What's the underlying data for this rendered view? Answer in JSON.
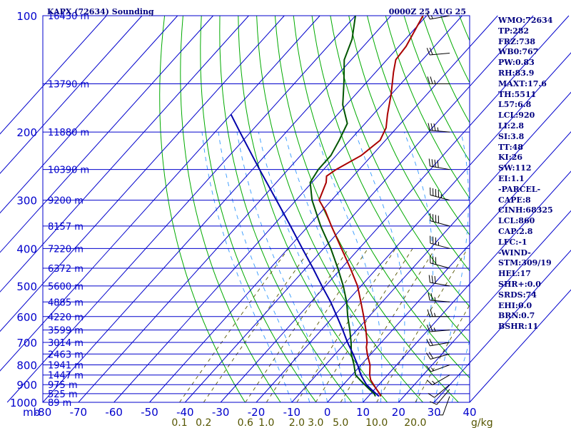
{
  "header": {
    "station_title": "KAPX (72634) Sounding",
    "valid_time": "0000Z 25 AUG 25"
  },
  "colors": {
    "axis_blue": "#0000cc",
    "title_navy": "#00007f",
    "temperature_red": "#aa0000",
    "dewpoint_green": "#005500",
    "parcel_blue": "#0000aa",
    "dry_adiabat_green": "#00aa00",
    "mixing_ratio_olive": "#555500",
    "moist_adiabat_cyan": "#3399ff"
  },
  "stats_panel": [
    "WMO:72634",
    "TP:282",
    "FRZ:738",
    "WB0:767",
    "PW:0.83",
    "RH:83.9",
    "MAXT:17.6",
    "TH:5511",
    "L57:6.8",
    "LCL:920",
    "LI:2.8",
    "SI:3.8",
    "TT:48",
    "KI:26",
    "SW:112",
    "EI:1.1",
    "-PARCEL-",
    "CAPE:8",
    "CINH:68325",
    "LCL:860",
    "CAP:2.8",
    "LFC:-1",
    "-WIND-",
    "STM:309/19",
    "HEL:17",
    "SHR+:0.0",
    "SRDS:74",
    "EHI:0.0",
    "BRN:0.7",
    "BSHR:11"
  ],
  "chart_data": {
    "type": "line",
    "chart_kind": "skew-T log-P sounding",
    "y_scale": "log",
    "ylim_mb": [
      1000,
      100
    ],
    "xlim_c": [
      -80,
      40
    ],
    "y_axis_unit": "mb",
    "x_axis_unit": "C",
    "mixing_ratio_unit": "g/kg",
    "pressure_ticks": [
      "100",
      "200",
      "300",
      "400",
      "500",
      "600",
      "700",
      "800",
      "900",
      "1000"
    ],
    "temperature_ticks": [
      "-80",
      "-70",
      "-60",
      "-50",
      "-40",
      "-30",
      "-20",
      "-10",
      "0",
      "10",
      "20",
      "30",
      "40"
    ],
    "mixing_ratio_labels": [
      "0.1",
      "0.2",
      "0.6",
      "1.0",
      "2.0",
      "3.0",
      "5.0",
      "10.0",
      "20.0"
    ],
    "height_labels": [
      {
        "p": 100,
        "label": "16430 m"
      },
      {
        "p": 150,
        "label": "13790 m"
      },
      {
        "p": 200,
        "label": "11880 m"
      },
      {
        "p": 250,
        "label": "10390 m"
      },
      {
        "p": 300,
        "label": "9200 m"
      },
      {
        "p": 350,
        "label": "8157 m"
      },
      {
        "p": 400,
        "label": "7220 m"
      },
      {
        "p": 450,
        "label": "6372 m"
      },
      {
        "p": 500,
        "label": "5600 m"
      },
      {
        "p": 550,
        "label": "4885 m"
      },
      {
        "p": 600,
        "label": "4220 m"
      },
      {
        "p": 650,
        "label": "3599 m"
      },
      {
        "p": 700,
        "label": "3014 m"
      },
      {
        "p": 750,
        "label": "2463 m"
      },
      {
        "p": 800,
        "label": "1941 m"
      },
      {
        "p": 850,
        "label": "1447 m"
      },
      {
        "p": 900,
        "label": "975 m"
      },
      {
        "p": 950,
        "label": "525 m"
      },
      {
        "p": 1000,
        "label": "89 m"
      }
    ],
    "series": [
      {
        "name": "Temperature",
        "color": "#aa0000",
        "points": [
          [
            965,
            13.5
          ],
          [
            950,
            12.5
          ],
          [
            925,
            10.5
          ],
          [
            900,
            8.5
          ],
          [
            875,
            6.5
          ],
          [
            850,
            5.0
          ],
          [
            800,
            2.5
          ],
          [
            750,
            -1.0
          ],
          [
            720,
            -3.0
          ],
          [
            700,
            -4.0
          ],
          [
            650,
            -7.5
          ],
          [
            600,
            -11.5
          ],
          [
            550,
            -16.0
          ],
          [
            500,
            -21.0
          ],
          [
            450,
            -27.5
          ],
          [
            400,
            -35.0
          ],
          [
            350,
            -43.5
          ],
          [
            320,
            -49.0
          ],
          [
            300,
            -53.5
          ],
          [
            270,
            -56.0
          ],
          [
            260,
            -57.5
          ],
          [
            250,
            -56.5
          ],
          [
            230,
            -53.0
          ],
          [
            210,
            -51.5
          ],
          [
            195,
            -53.0
          ],
          [
            180,
            -56.0
          ],
          [
            160,
            -60.0
          ],
          [
            140,
            -65.0
          ],
          [
            130,
            -67.5
          ],
          [
            120,
            -68.0
          ],
          [
            100,
            -71.0
          ]
        ]
      },
      {
        "name": "Dew Point",
        "color": "#005500",
        "points": [
          [
            965,
            12.0
          ],
          [
            950,
            11.0
          ],
          [
            925,
            8.5
          ],
          [
            900,
            6.0
          ],
          [
            875,
            3.5
          ],
          [
            850,
            1.0
          ],
          [
            800,
            -2.0
          ],
          [
            750,
            -5.5
          ],
          [
            700,
            -8.5
          ],
          [
            650,
            -12.0
          ],
          [
            600,
            -16.0
          ],
          [
            550,
            -20.0
          ],
          [
            500,
            -25.0
          ],
          [
            450,
            -31.0
          ],
          [
            400,
            -38.0
          ],
          [
            350,
            -46.5
          ],
          [
            300,
            -55.5
          ],
          [
            270,
            -60.5
          ],
          [
            250,
            -61.5
          ],
          [
            230,
            -61.5
          ],
          [
            210,
            -63.0
          ],
          [
            190,
            -65.0
          ],
          [
            170,
            -71.0
          ],
          [
            150,
            -76.0
          ],
          [
            130,
            -82.0
          ],
          [
            115,
            -85.0
          ],
          [
            100,
            -90.0
          ]
        ]
      },
      {
        "name": "Parcel",
        "color": "#0000aa",
        "points": [
          [
            965,
            13.0
          ],
          [
            950,
            11.5
          ],
          [
            925,
            9.0
          ],
          [
            900,
            6.5
          ],
          [
            850,
            2.5
          ],
          [
            800,
            -1.0
          ],
          [
            750,
            -5.0
          ],
          [
            700,
            -9.5
          ],
          [
            650,
            -14.0
          ],
          [
            600,
            -19.0
          ],
          [
            550,
            -24.5
          ],
          [
            500,
            -31.0
          ],
          [
            450,
            -38.0
          ],
          [
            400,
            -46.0
          ],
          [
            350,
            -55.0
          ],
          [
            300,
            -65.5
          ],
          [
            250,
            -78.0
          ],
          [
            200,
            -93.0
          ],
          [
            180,
            -100.0
          ]
        ]
      }
    ],
    "wind_barbs": [
      {
        "p": 965,
        "dir": 200,
        "kt": 5
      },
      {
        "p": 925,
        "dir": 220,
        "kt": 10
      },
      {
        "p": 900,
        "dir": 230,
        "kt": 10
      },
      {
        "p": 850,
        "dir": 240,
        "kt": 15
      },
      {
        "p": 800,
        "dir": 250,
        "kt": 15
      },
      {
        "p": 750,
        "dir": 255,
        "kt": 20
      },
      {
        "p": 700,
        "dir": 260,
        "kt": 20
      },
      {
        "p": 650,
        "dir": 265,
        "kt": 25
      },
      {
        "p": 600,
        "dir": 270,
        "kt": 25
      },
      {
        "p": 550,
        "dir": 275,
        "kt": 25
      },
      {
        "p": 500,
        "dir": 280,
        "kt": 30
      },
      {
        "p": 450,
        "dir": 285,
        "kt": 30
      },
      {
        "p": 400,
        "dir": 285,
        "kt": 35
      },
      {
        "p": 350,
        "dir": 285,
        "kt": 40
      },
      {
        "p": 300,
        "dir": 285,
        "kt": 45
      },
      {
        "p": 250,
        "dir": 280,
        "kt": 40
      },
      {
        "p": 200,
        "dir": 275,
        "kt": 35
      },
      {
        "p": 150,
        "dir": 270,
        "kt": 25
      },
      {
        "p": 125,
        "dir": 265,
        "kt": 20
      },
      {
        "p": 100,
        "dir": 260,
        "kt": 15
      }
    ]
  }
}
